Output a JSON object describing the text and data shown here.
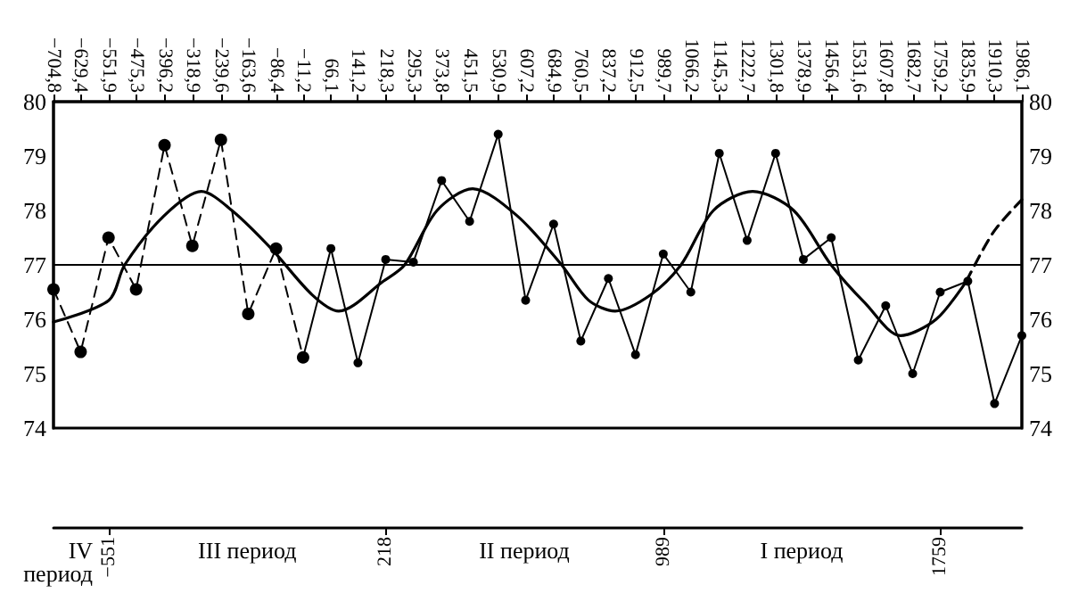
{
  "chart_data": {
    "type": "line",
    "x2lim": [
      -704.8,
      1986.1
    ],
    "x2ticks": [
      {
        "value": -704.8,
        "label": "−704,8"
      },
      {
        "value": -629.4,
        "label": "−629,4"
      },
      {
        "value": -551.9,
        "label": "−551,9"
      },
      {
        "value": -475.3,
        "label": "−475,3"
      },
      {
        "value": -396.2,
        "label": "−396,2"
      },
      {
        "value": -318.9,
        "label": "−318,9"
      },
      {
        "value": -239.6,
        "label": "−239,6"
      },
      {
        "value": -163.6,
        "label": "−163,6"
      },
      {
        "value": -86.4,
        "label": "−86,4"
      },
      {
        "value": -11.2,
        "label": "−11,2"
      },
      {
        "value": 66.1,
        "label": "66,1"
      },
      {
        "value": 141.2,
        "label": "141,2"
      },
      {
        "value": 218.3,
        "label": "218,3"
      },
      {
        "value": 295.3,
        "label": "295,3"
      },
      {
        "value": 373.8,
        "label": "373,8"
      },
      {
        "value": 451.5,
        "label": "451,5"
      },
      {
        "value": 530.9,
        "label": "530,9"
      },
      {
        "value": 607.2,
        "label": "607,2"
      },
      {
        "value": 684.9,
        "label": "684,9"
      },
      {
        "value": 760.5,
        "label": "760,5"
      },
      {
        "value": 837.2,
        "label": "837,2"
      },
      {
        "value": 912.5,
        "label": "912,5"
      },
      {
        "value": 989.7,
        "label": "989,7"
      },
      {
        "value": 1066.2,
        "label": "1066,2"
      },
      {
        "value": 1145.3,
        "label": "1145,3"
      },
      {
        "value": 1222.7,
        "label": "1222,7"
      },
      {
        "value": 1301.8,
        "label": "1301,8"
      },
      {
        "value": 1378.9,
        "label": "1378,9"
      },
      {
        "value": 1456.4,
        "label": "1456,4"
      },
      {
        "value": 1531.6,
        "label": "1531,6"
      },
      {
        "value": 1607.8,
        "label": "1607,8"
      },
      {
        "value": 1682.7,
        "label": "1682,7"
      },
      {
        "value": 1759.2,
        "label": "1759,2"
      },
      {
        "value": 1835.9,
        "label": "1835,9"
      },
      {
        "value": 1910.3,
        "label": "1910,3"
      },
      {
        "value": 1986.1,
        "label": "1986,1"
      }
    ],
    "xlim": [
      -704.8,
      1986.1
    ],
    "xticks": [
      {
        "value": -551,
        "label": "−551"
      },
      218,
      989,
      1759
    ],
    "ylim": [
      74,
      80
    ],
    "yticks": [
      74,
      75,
      76,
      77,
      78,
      79,
      80
    ],
    "y2lim": [
      74,
      80
    ],
    "y2ticks": [
      74,
      75,
      76,
      77,
      78,
      79,
      80
    ],
    "grid": false,
    "marker": "circle",
    "ref_lines": [
      {
        "axis": "y",
        "value": 77,
        "color": "#000000"
      }
    ],
    "annotations": [
      "IV период",
      "III период",
      "II период",
      "I период"
    ],
    "series": [
      {
        "color": "#000000",
        "line_style": "dashed",
        "x": [
          -704.8,
          -629.4,
          -551.9,
          -475.3,
          -396.2,
          -318.9,
          -239.6,
          -163.6,
          -86.4,
          -11.2
        ],
        "values": [
          76.55,
          75.4,
          77.5,
          76.55,
          79.2,
          77.35,
          79.3,
          76.1,
          77.3,
          75.3
        ]
      },
      {
        "color": "#000000",
        "line_style": "solid",
        "x": [
          -11.2,
          66.1,
          141.2,
          218.3,
          295.3,
          373.8,
          451.5,
          530.9,
          607.2,
          684.9,
          760.5,
          837.2,
          912.5,
          989.7,
          1066.2,
          1145.3,
          1222.7,
          1301.8,
          1378.9,
          1456.4,
          1531.6,
          1607.8,
          1682.7,
          1759.2,
          1835.9,
          1910.3,
          1986.1
        ],
        "values": [
          75.3,
          77.3,
          75.2,
          77.1,
          77.05,
          78.55,
          77.8,
          79.4,
          76.35,
          77.75,
          75.6,
          76.75,
          75.35,
          77.2,
          76.5,
          79.05,
          77.45,
          79.05,
          77.1,
          77.5,
          75.25,
          76.25,
          75.0,
          76.5,
          76.7,
          74.45,
          75.7
        ]
      },
      {
        "color": "#000000",
        "line_style": "solid",
        "marker": "none",
        "x": [
          -704.8,
          -551,
          -507,
          -398,
          -294,
          -209,
          -100,
          14,
          88,
          212,
          271,
          361,
          460,
          584,
          707,
          782,
          856,
          955,
          1039,
          1129,
          1238,
          1352,
          1456,
          1550,
          1649,
          1748,
          1832
        ],
        "values": [
          75.95,
          76.35,
          77.0,
          77.9,
          78.35,
          78.0,
          77.3,
          76.45,
          76.15,
          76.7,
          77.0,
          78.0,
          78.4,
          77.9,
          77.0,
          76.35,
          76.15,
          76.45,
          77.0,
          78.0,
          78.35,
          78.0,
          77.0,
          76.3,
          75.7,
          76.0,
          76.7
        ]
      },
      {
        "color": "#000000",
        "line_style": "dashed",
        "marker": "none",
        "x": [
          1832,
          1907,
          1986.1
        ],
        "values": [
          76.7,
          77.6,
          78.2
        ]
      }
    ]
  }
}
